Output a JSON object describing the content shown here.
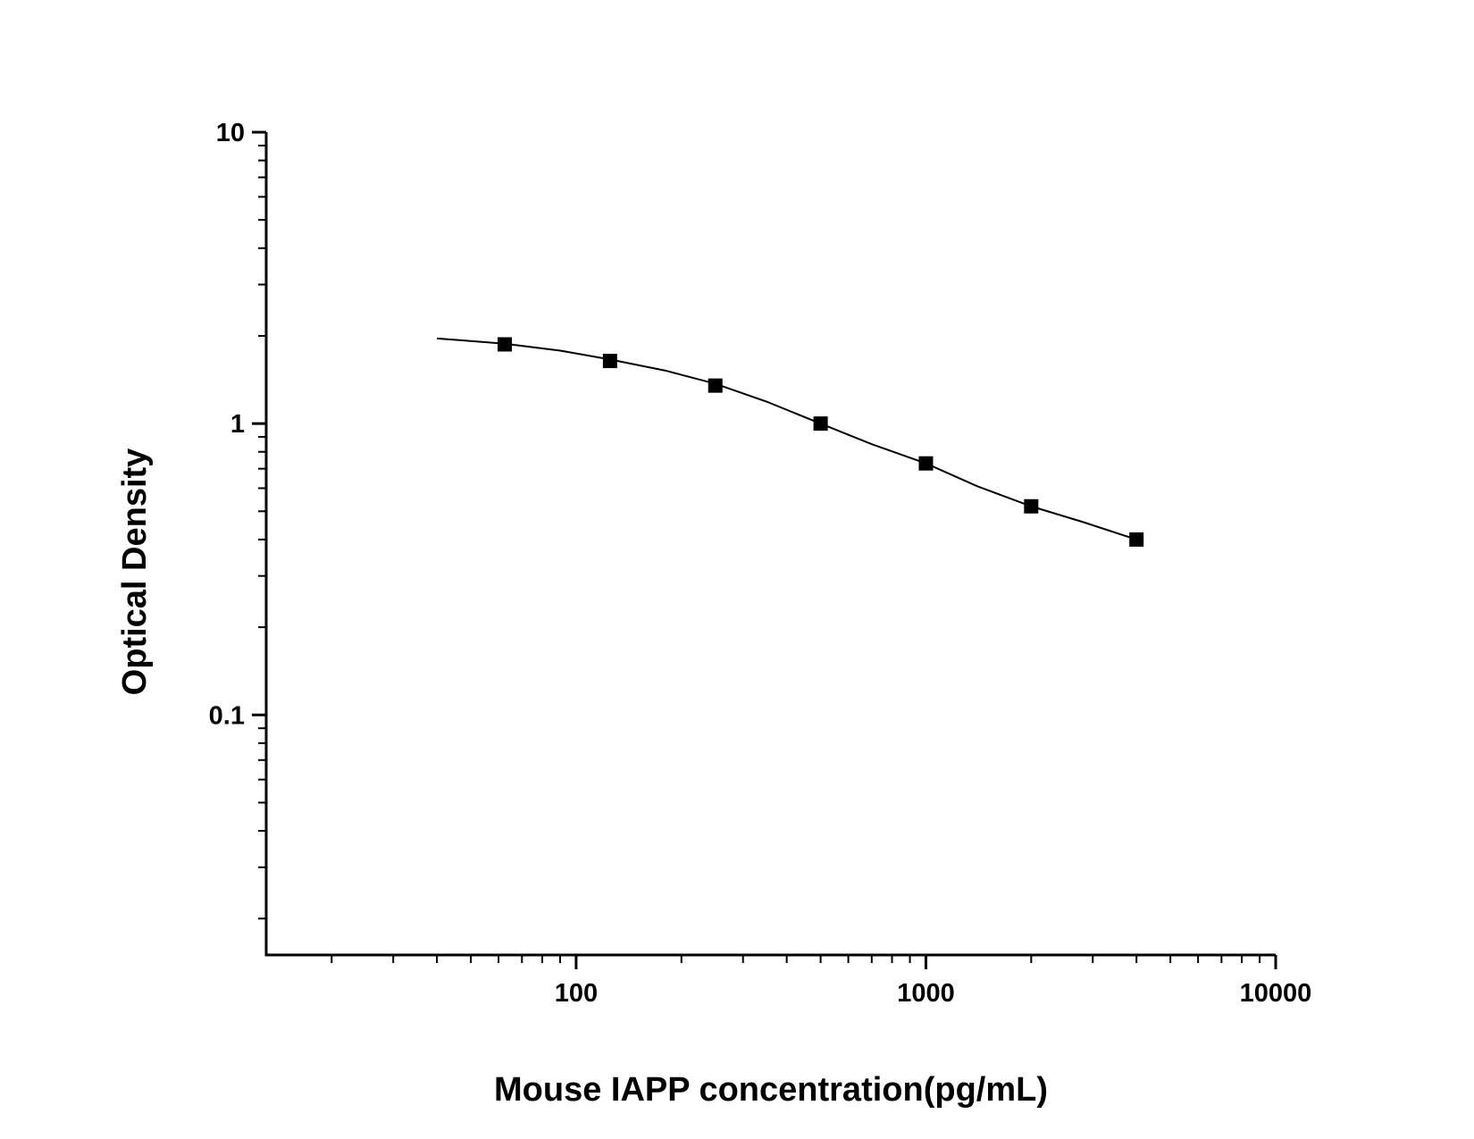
{
  "chart_data": {
    "type": "scatter",
    "x_label": "Mouse IAPP concentration(pg/mL)",
    "y_label": "Optical Density",
    "x_log": true,
    "y_log": true,
    "minor_ticks": true,
    "xlim": [
      13,
      10000
    ],
    "ylim": [
      0.015,
      10
    ],
    "xticks": [
      100,
      1000,
      10000
    ],
    "yticks": [
      0.1,
      1,
      10
    ],
    "series": [
      {
        "kind": "points",
        "color": "#000000",
        "x": [
          62.5,
          125,
          250,
          500,
          1000,
          2000,
          4000
        ],
        "values": [
          1.87,
          1.64,
          1.35,
          1.0,
          0.73,
          0.52,
          0.4
        ]
      },
      {
        "kind": "curve",
        "color": "#000000",
        "x": [
          40,
          62.5,
          90,
          125,
          180,
          250,
          350,
          500,
          700,
          1000,
          1400,
          2000,
          2800,
          4000
        ],
        "values": [
          1.96,
          1.88,
          1.78,
          1.66,
          1.52,
          1.37,
          1.19,
          1.0,
          0.85,
          0.73,
          0.61,
          0.52,
          0.46,
          0.4
        ]
      }
    ]
  }
}
